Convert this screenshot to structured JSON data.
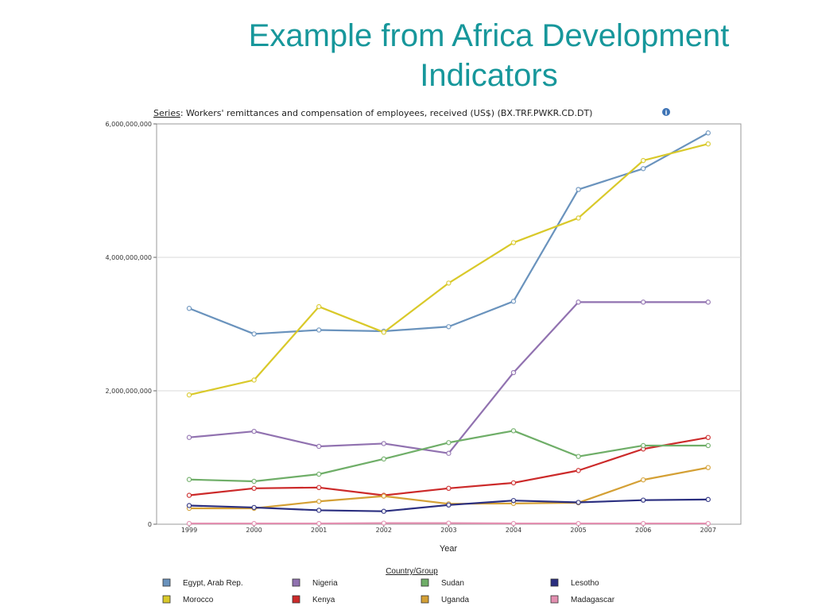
{
  "slide": {
    "title_line1": "Example from Africa Development",
    "title_line2": "Indicators"
  },
  "series_caption": {
    "label": "Series",
    "text": ": Workers' remittances and compensation of employees, received (US$) (BX.TRF.PWKR.CD.DT)",
    "info_icon": "info-icon"
  },
  "legend": {
    "title": "Country/Group"
  },
  "chart_data": {
    "type": "line",
    "title": "",
    "xlabel": "Year",
    "ylabel": "",
    "ylim": [
      0,
      6000000000
    ],
    "y_ticks": [
      0,
      2000000000,
      4000000000,
      6000000000
    ],
    "y_tick_labels": [
      "0",
      "2,000,000,000",
      "4,000,000,000",
      "6,000,000,000"
    ],
    "x": [
      "1999",
      "2000",
      "2001",
      "2002",
      "2003",
      "2004",
      "2005",
      "2006",
      "2007"
    ],
    "grid": true,
    "legend_position": "bottom",
    "series": [
      {
        "name": "Egypt, Arab Rep.",
        "color": "#6a93bd",
        "values": [
          3235000000,
          2852000000,
          2911000000,
          2893000000,
          2961000000,
          3341000000,
          5017000000,
          5330000000,
          5865000000
        ]
      },
      {
        "name": "Morocco",
        "color": "#d9c92a",
        "values": [
          1938000000,
          2161000000,
          3261000000,
          2877000000,
          3614000000,
          4221000000,
          4590000000,
          5451000000,
          5700000000
        ]
      },
      {
        "name": "Nigeria",
        "color": "#9172b0",
        "values": [
          1301000000,
          1392000000,
          1167000000,
          1209000000,
          1063000000,
          2273000000,
          3329000000,
          3329000000,
          3329000000
        ]
      },
      {
        "name": "Kenya",
        "color": "#cc2a2a",
        "values": [
          433000000,
          538000000,
          550000000,
          433000000,
          538000000,
          620000000,
          805000000,
          1128000000,
          1300000000
        ]
      },
      {
        "name": "Sudan",
        "color": "#6fae68",
        "values": [
          670000000,
          643000000,
          750000000,
          978000000,
          1223000000,
          1401000000,
          1016000000,
          1179000000,
          1179000000
        ]
      },
      {
        "name": "Uganda",
        "color": "#d4a035",
        "values": [
          238000000,
          238000000,
          342000000,
          421000000,
          306000000,
          311000000,
          322000000,
          665000000,
          849000000
        ]
      },
      {
        "name": "Lesotho",
        "color": "#2b2f80",
        "values": [
          280000000,
          251000000,
          209000000,
          194000000,
          288000000,
          355000000,
          327000000,
          361000000,
          371000000
        ]
      },
      {
        "name": "Madagascar",
        "color": "#e38fb0",
        "values": [
          11000000,
          11000000,
          11000000,
          16000000,
          16000000,
          11000000,
          11000000,
          11000000,
          11000000
        ]
      }
    ]
  }
}
